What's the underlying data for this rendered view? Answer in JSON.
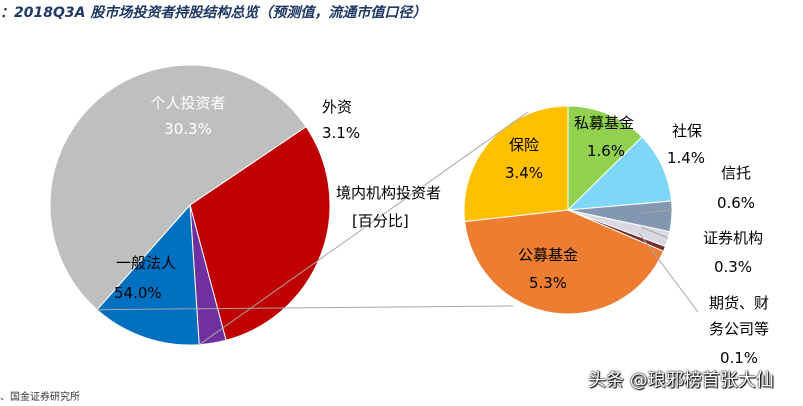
{
  "title": "：2018Q3A 股市场投资者持股结构总览（预测值，流通市值口径）",
  "source": "、国金证券研究所",
  "watermark": "头条 @琅邪榜首张大仙",
  "chart_data": [
    {
      "type": "pie",
      "slices": [
        {
          "label": "个人投资者",
          "value": 30.3,
          "value_label": "30.3%",
          "color": "#c00000"
        },
        {
          "label": "外资",
          "value": 3.1,
          "value_label": "3.1%",
          "color": "#7030a0"
        },
        {
          "label": "境内机构投资者",
          "sublabel": "[百分比]",
          "value": 12.6,
          "value_label": "",
          "color": "#0070c0"
        },
        {
          "label": "一般法人",
          "value": 54.0,
          "value_label": "54.0%",
          "color": "#bfbfbf"
        }
      ]
    },
    {
      "type": "pie",
      "slices": [
        {
          "label": "私募基金",
          "value": 1.6,
          "value_label": "1.6%",
          "color": "#92d050"
        },
        {
          "label": "社保",
          "value": 1.4,
          "value_label": "1.4%",
          "color": "#7fd7f7"
        },
        {
          "label": "信托",
          "value": 0.6,
          "value_label": "0.6%",
          "color": "#8497b0"
        },
        {
          "label": "证券机构",
          "value": 0.3,
          "value_label": "0.3%",
          "color": "#d9d9e6"
        },
        {
          "label": "期货、财务公司等",
          "label_lines": [
            "期货、财",
            "务公司等"
          ],
          "value": 0.1,
          "value_label": "0.1%",
          "color": "#7b2c2c"
        },
        {
          "label": "公募基金",
          "value": 5.3,
          "value_label": "5.3%",
          "color": "#ed7d31"
        },
        {
          "label": "保险",
          "value": 3.4,
          "value_label": "3.4%",
          "color": "#ffc000"
        }
      ]
    }
  ]
}
